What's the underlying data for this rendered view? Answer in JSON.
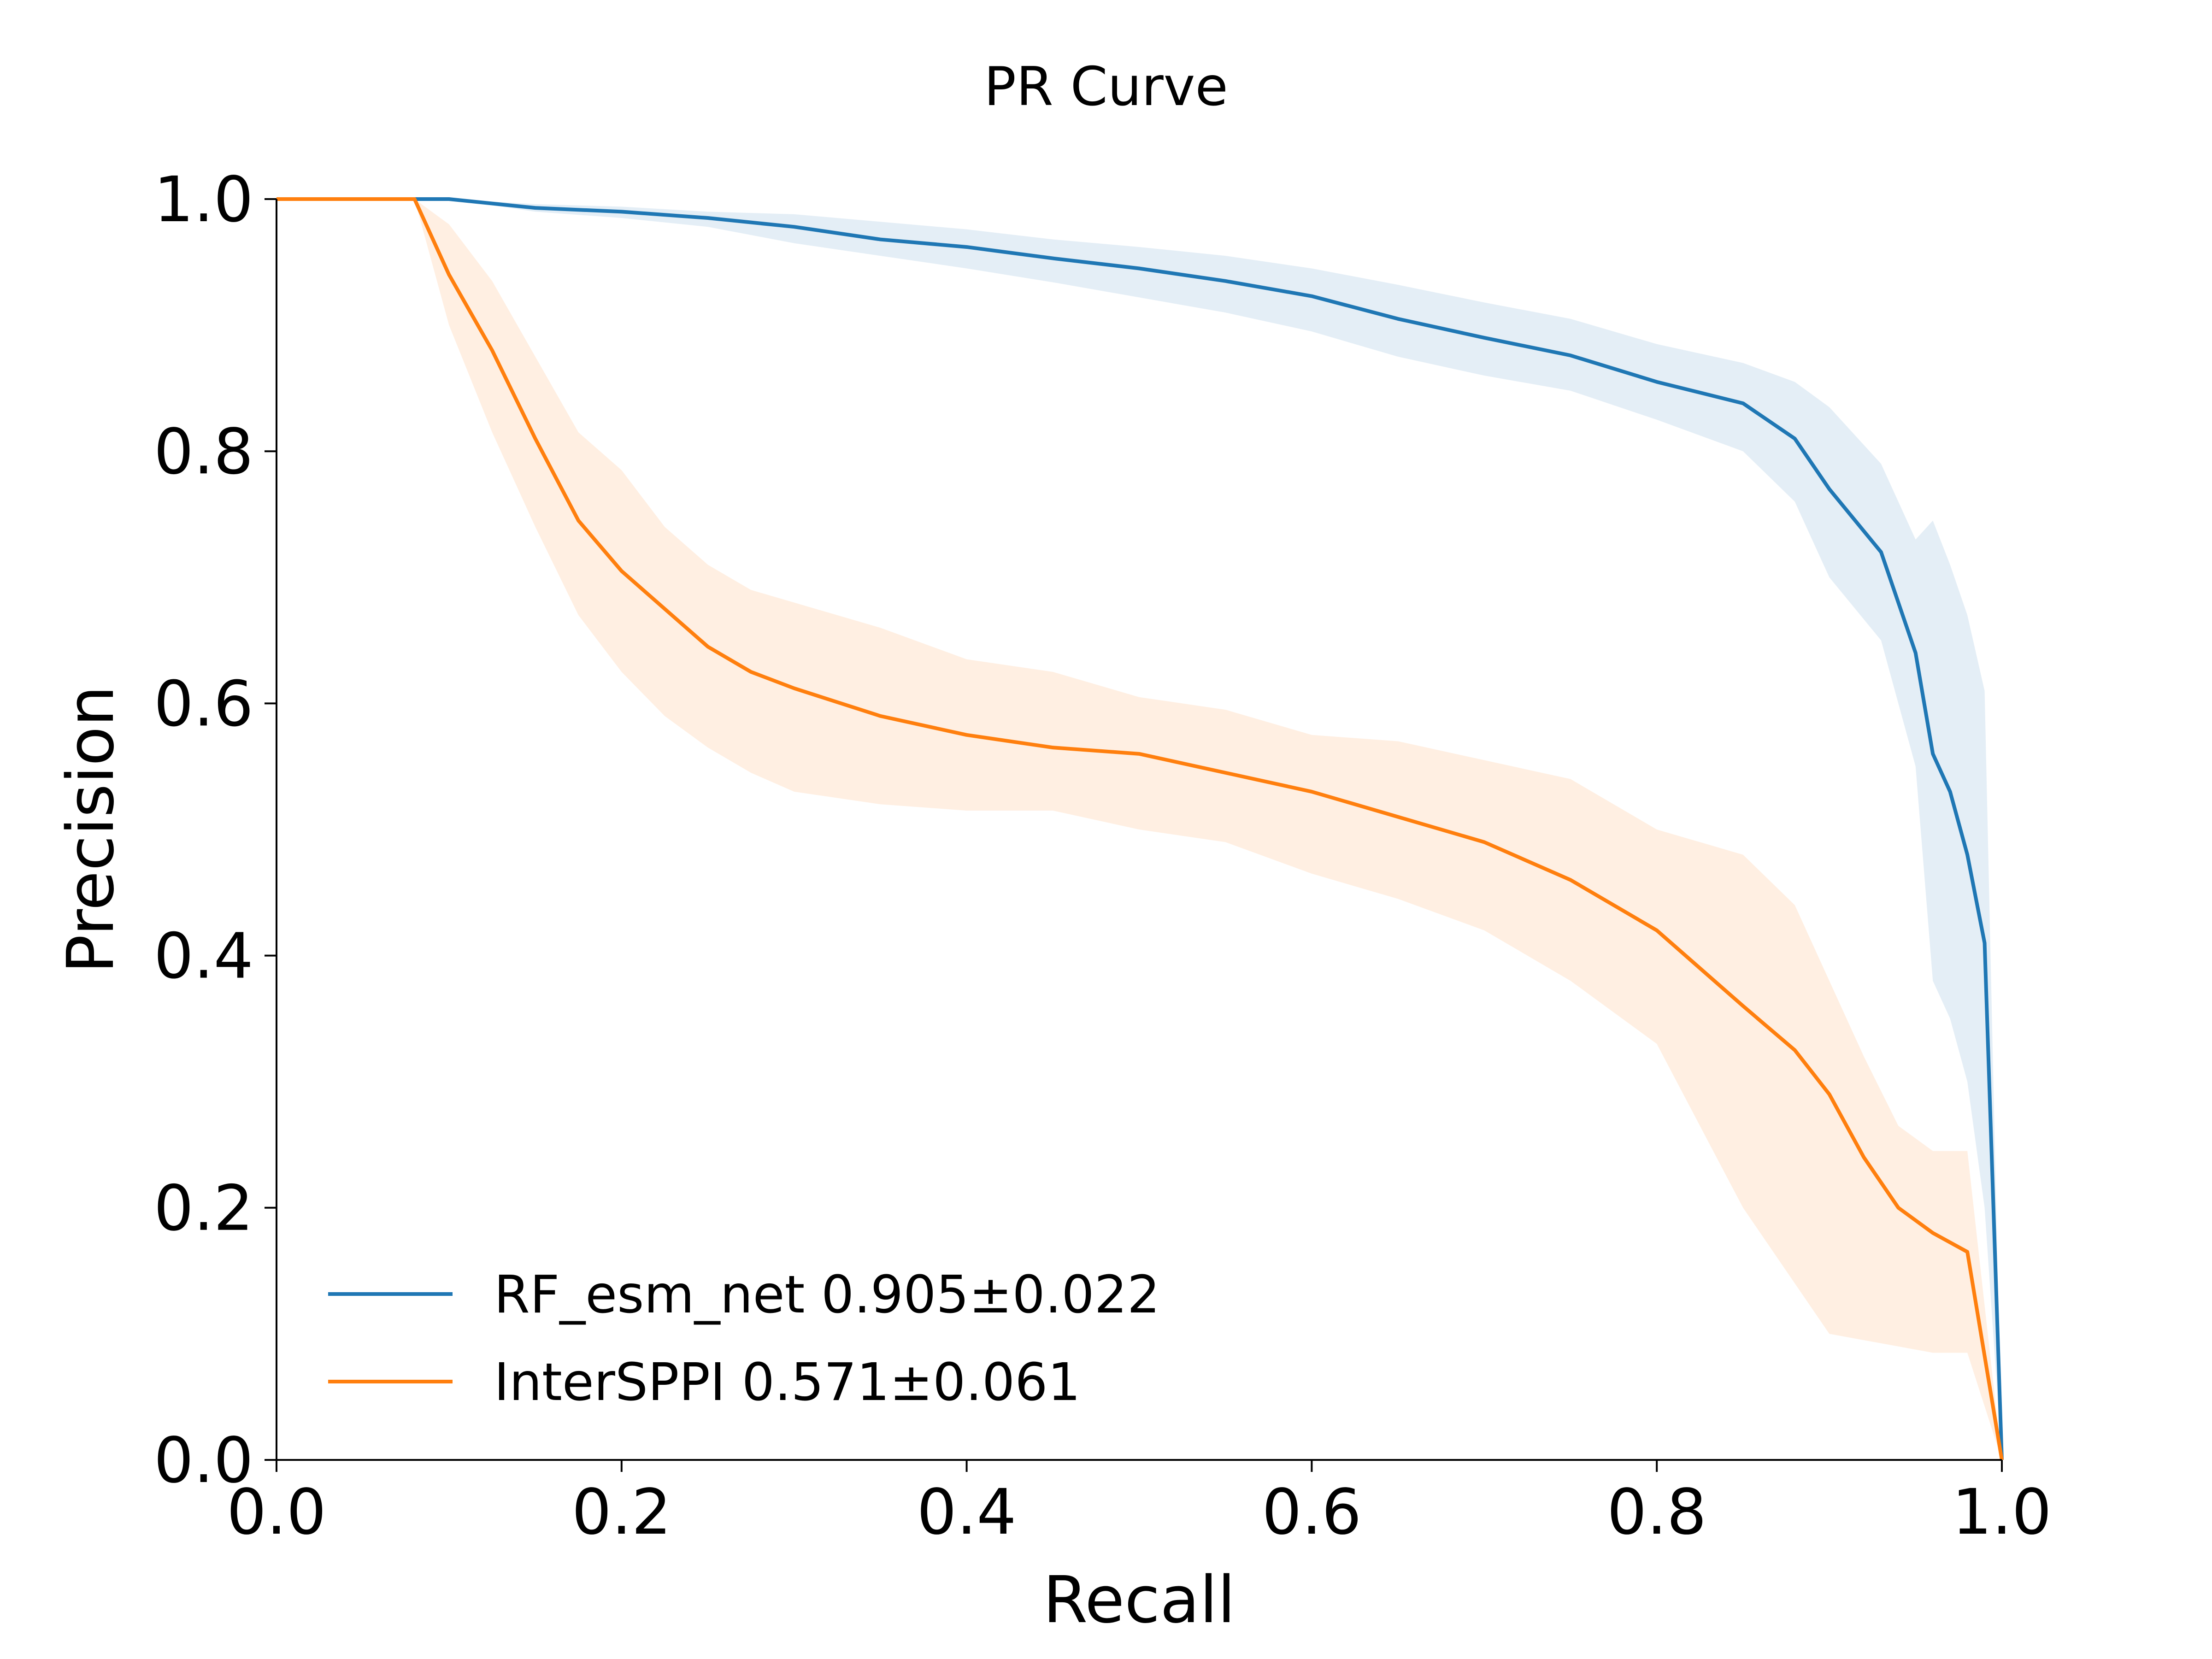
{
  "chart_data": {
    "type": "line",
    "title": "PR Curve",
    "xlabel": "Recall",
    "ylabel": "Precision",
    "xlim": [
      0,
      1
    ],
    "ylim": [
      0,
      1
    ],
    "xticks": [
      "0.0",
      "0.2",
      "0.4",
      "0.6",
      "0.8",
      "1.0"
    ],
    "yticks": [
      "0.0",
      "0.2",
      "0.4",
      "0.6",
      "0.8",
      "1.0"
    ],
    "grid": false,
    "legend_position": "lower-left",
    "series": [
      {
        "name": "RF_esm_net 0.905±0.022",
        "color": "#1f77b4",
        "x": [
          0.0,
          0.08,
          0.1,
          0.15,
          0.2,
          0.25,
          0.3,
          0.35,
          0.4,
          0.45,
          0.5,
          0.55,
          0.6,
          0.65,
          0.7,
          0.75,
          0.8,
          0.85,
          0.88,
          0.9,
          0.93,
          0.95,
          0.96,
          0.97,
          0.98,
          0.99,
          1.0
        ],
        "y": [
          1.0,
          1.0,
          1.0,
          0.993,
          0.99,
          0.985,
          0.978,
          0.968,
          0.962,
          0.953,
          0.945,
          0.935,
          0.923,
          0.905,
          0.89,
          0.876,
          0.855,
          0.838,
          0.81,
          0.77,
          0.72,
          0.64,
          0.56,
          0.53,
          0.48,
          0.41,
          0.0
        ],
        "band_lower": [
          1.0,
          1.0,
          1.0,
          0.99,
          0.985,
          0.978,
          0.965,
          0.955,
          0.945,
          0.934,
          0.922,
          0.91,
          0.895,
          0.875,
          0.86,
          0.848,
          0.825,
          0.8,
          0.76,
          0.7,
          0.65,
          0.55,
          0.38,
          0.35,
          0.3,
          0.2,
          0.0
        ],
        "band_upper": [
          1.0,
          1.0,
          1.0,
          0.996,
          0.994,
          0.99,
          0.988,
          0.982,
          0.976,
          0.968,
          0.962,
          0.955,
          0.945,
          0.932,
          0.918,
          0.905,
          0.885,
          0.87,
          0.855,
          0.835,
          0.79,
          0.73,
          0.745,
          0.71,
          0.67,
          0.61,
          0.0
        ]
      },
      {
        "name": "InterSPPI 0.571±0.061",
        "color": "#ff7f0e",
        "x": [
          0.0,
          0.08,
          0.1,
          0.125,
          0.15,
          0.175,
          0.2,
          0.225,
          0.25,
          0.275,
          0.3,
          0.35,
          0.4,
          0.45,
          0.5,
          0.55,
          0.6,
          0.65,
          0.7,
          0.75,
          0.8,
          0.85,
          0.88,
          0.9,
          0.92,
          0.94,
          0.96,
          0.98,
          1.0
        ],
        "y": [
          1.0,
          1.0,
          0.94,
          0.88,
          0.81,
          0.745,
          0.705,
          0.675,
          0.645,
          0.625,
          0.612,
          0.59,
          0.575,
          0.565,
          0.56,
          0.545,
          0.53,
          0.51,
          0.49,
          0.46,
          0.42,
          0.36,
          0.325,
          0.29,
          0.24,
          0.2,
          0.18,
          0.165,
          0.0
        ],
        "band_lower": [
          1.0,
          1.0,
          0.9,
          0.815,
          0.74,
          0.67,
          0.625,
          0.59,
          0.565,
          0.545,
          0.53,
          0.52,
          0.515,
          0.515,
          0.5,
          0.49,
          0.465,
          0.445,
          0.42,
          0.38,
          0.33,
          0.2,
          0.14,
          0.1,
          0.095,
          0.09,
          0.085,
          0.085,
          0.0
        ],
        "band_upper": [
          1.0,
          1.0,
          0.98,
          0.935,
          0.875,
          0.815,
          0.785,
          0.74,
          0.71,
          0.69,
          0.68,
          0.66,
          0.635,
          0.625,
          0.605,
          0.595,
          0.575,
          0.57,
          0.555,
          0.54,
          0.5,
          0.48,
          0.44,
          0.38,
          0.32,
          0.265,
          0.245,
          0.245,
          0.0
        ]
      }
    ]
  }
}
